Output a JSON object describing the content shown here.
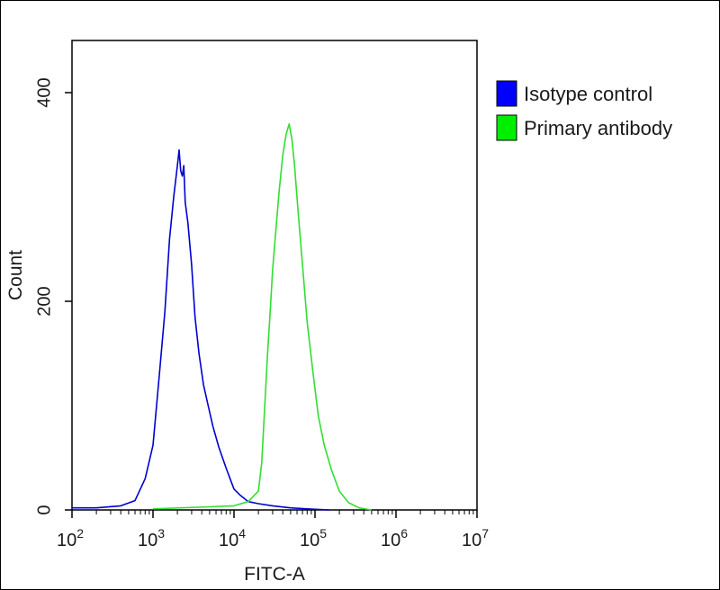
{
  "chart_data": {
    "type": "line",
    "xlabel": "FITC-A",
    "ylabel": "Count",
    "x_scale": "log",
    "xlim": [
      100,
      10000000
    ],
    "ylim": [
      0,
      450
    ],
    "x_ticks": [
      {
        "value": 100,
        "base": "10",
        "exp": "2"
      },
      {
        "value": 1000,
        "base": "10",
        "exp": "3"
      },
      {
        "value": 10000,
        "base": "10",
        "exp": "4"
      },
      {
        "value": 100000,
        "base": "10",
        "exp": "5"
      },
      {
        "value": 1000000,
        "base": "10",
        "exp": "6"
      },
      {
        "value": 10000000,
        "base": "10",
        "exp": "7"
      }
    ],
    "y_ticks": [
      {
        "value": 0,
        "label": "0"
      },
      {
        "value": 200,
        "label": "200"
      },
      {
        "value": 400,
        "label": "400"
      }
    ],
    "grid": false,
    "legend_position": "right",
    "series": [
      {
        "name": "Isotype control",
        "color": "#0000d0",
        "swatch_color": "#0000ff",
        "x": [
          100,
          200,
          400,
          600,
          800,
          1000,
          1200,
          1400,
          1600,
          1800,
          2000,
          2100,
          2200,
          2300,
          2400,
          2500,
          2700,
          3000,
          3300,
          3700,
          4200,
          4800,
          5500,
          6500,
          8000,
          10000,
          12000,
          15000,
          20000,
          30000,
          50000,
          80000,
          150000
        ],
        "y": [
          2,
          2,
          4,
          9,
          30,
          62,
          130,
          190,
          260,
          300,
          330,
          345,
          325,
          320,
          330,
          295,
          275,
          235,
          185,
          150,
          120,
          100,
          80,
          60,
          40,
          20,
          14,
          8,
          6,
          4,
          2,
          1,
          0
        ]
      },
      {
        "name": "Primary antibody",
        "color": "#33dd33",
        "swatch_color": "#00ee00",
        "x": [
          1000,
          5000,
          10000,
          15000,
          20000,
          22000,
          24000,
          26000,
          28000,
          30000,
          33000,
          36000,
          40000,
          44000,
          48000,
          52000,
          56000,
          62000,
          70000,
          80000,
          95000,
          110000,
          130000,
          160000,
          200000,
          260000,
          350000,
          500000
        ],
        "y": [
          1,
          3,
          4,
          8,
          18,
          45,
          100,
          150,
          190,
          230,
          270,
          305,
          340,
          360,
          370,
          355,
          330,
          285,
          235,
          180,
          130,
          90,
          62,
          38,
          18,
          7,
          2,
          0
        ]
      }
    ]
  }
}
